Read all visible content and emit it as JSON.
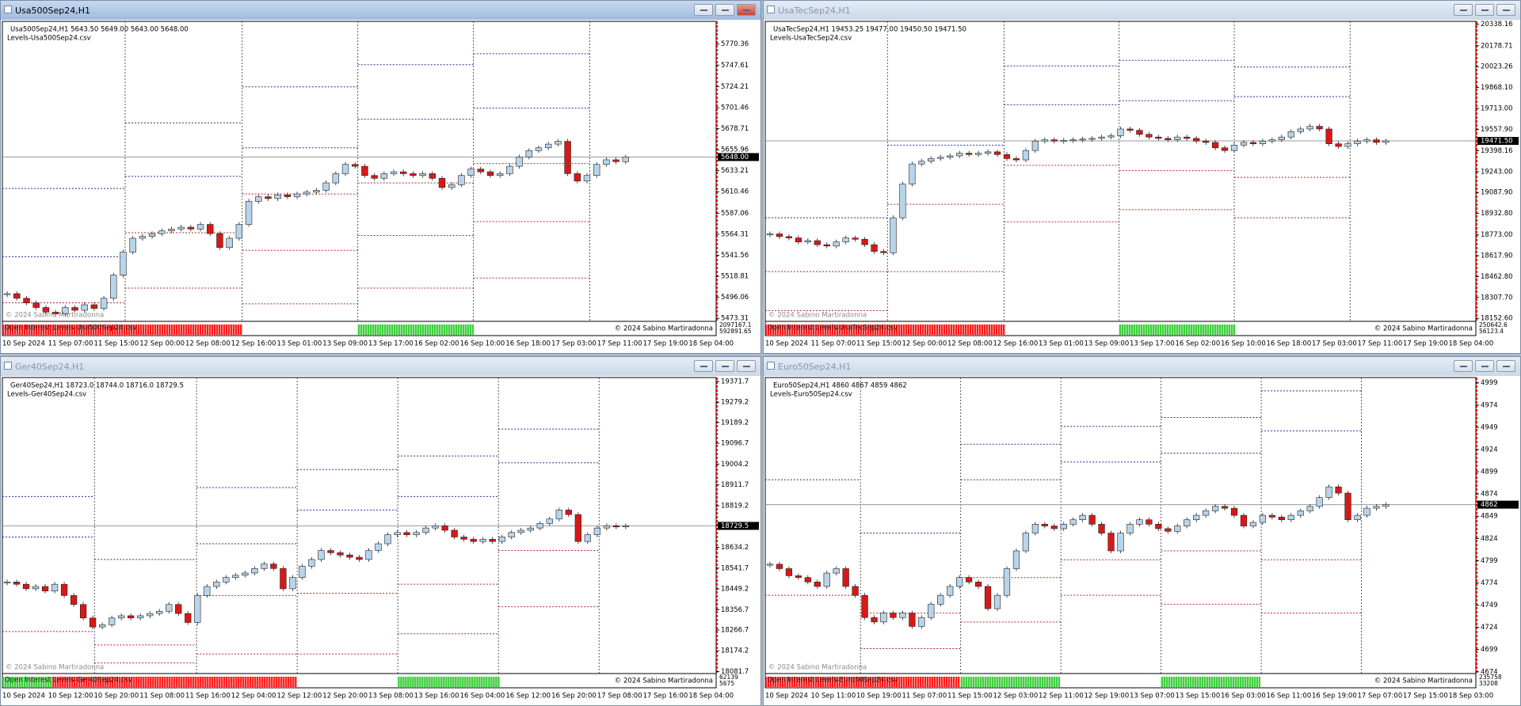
{
  "windows": [
    {
      "title": "Usa500Sep24,H1",
      "active": true,
      "header": "Usa500Sep24,H1  5643.50 5649.00 5643.00 5648.00",
      "file": "Levels-Usa500Sep24.csv",
      "copyright": "© 2024 Sabino Martiradonna",
      "indicator_title": "Open Interest Levels-Usa500Sep24.csv",
      "indicator_values": [
        2097167.1,
        592891.65
      ],
      "ylim": [
        5470,
        5795
      ],
      "price_ticks": [
        5770.36,
        5747.61,
        5724.21,
        5701.46,
        5678.71,
        5655.96,
        5633.21,
        5610.46,
        5587.06,
        5564.31,
        5541.56,
        5518.81,
        5496.06,
        5473.31
      ],
      "current_price": {
        "value": 5648,
        "label": "5648.00"
      },
      "time_labels": [
        "10 Sep 2024",
        "11 Sep 07:00",
        "11 Sep 15:00",
        "12 Sep 00:00",
        "12 Sep 08:00",
        "12 Sep 16:00",
        "13 Sep 01:00",
        "13 Sep 09:00",
        "13 Sep 17:00",
        "16 Sep 02:00",
        "16 Sep 10:00",
        "16 Sep 18:00",
        "17 Sep 03:00",
        "17 Sep 11:00",
        "17 Sep 19:00",
        "18 Sep 04:00"
      ],
      "closes": [
        5500,
        5495,
        5490,
        5485,
        5480,
        5478,
        5485,
        5482,
        5488,
        5484,
        5495,
        5520,
        5545,
        5560,
        5562,
        5565,
        5568,
        5570,
        5572,
        5570,
        5575,
        5565,
        5550,
        5560,
        5575,
        5600,
        5605,
        5603,
        5607,
        5605,
        5608,
        5610,
        5612,
        5620,
        5630,
        5640,
        5638,
        5628,
        5625,
        5630,
        5632,
        5630,
        5628,
        5630,
        5625,
        5615,
        5618,
        5628,
        5635,
        5632,
        5628,
        5630,
        5638,
        5648,
        5655,
        5658,
        5662,
        5665,
        5630,
        5622,
        5628,
        5640,
        5645,
        5643,
        5648
      ],
      "levels": [
        [
          [
            5614,
            5540
          ],
          [
            5490
          ]
        ],
        [
          [
            5685,
            5627
          ],
          [
            5566,
            5506
          ]
        ],
        [
          [
            5724,
            5658
          ],
          [
            5608,
            5547,
            5489
          ]
        ],
        [
          [
            5748,
            5689
          ],
          [
            5620,
            5563,
            5506
          ]
        ],
        [
          [
            5760,
            5701
          ],
          [
            5641,
            5578,
            5517
          ]
        ]
      ],
      "level_colors": [
        "#2b2b9a",
        "#b02828"
      ],
      "candle_colors": [
        "#b8d4ea",
        "#d81818"
      ]
    },
    {
      "title": "UsaTecSep24,H1",
      "active": false,
      "header": "UsaTecSep24,H1  19453.25 19477.00 19450.50 19471.50",
      "file": "Levels-UsaTecSep24.csv",
      "copyright": "© 2024 Sabino Martiradonna",
      "indicator_title": "Open Interest Levels-UsaTecSep24.csv",
      "indicator_values": [
        250642.6,
        56123.4
      ],
      "ylim": [
        18130,
        20360
      ],
      "price_ticks": [
        20338.16,
        20178.71,
        20023.26,
        {
          "value": 19868.1,
          "label": "19868.10"
        },
        {
          "value": 19713,
          "label": "19713.00"
        },
        {
          "value": 19557.9,
          "label": "19557.90"
        },
        19398.16,
        {
          "value": 19243,
          "label": "19243.00"
        },
        {
          "value": 19087.9,
          "label": "19087.90"
        },
        {
          "value": 18932.8,
          "label": "18932.80"
        },
        {
          "value": 18773,
          "label": "18773.00"
        },
        {
          "value": 18617.9,
          "label": "18617.90"
        },
        {
          "value": 18462.8,
          "label": "18462.80"
        },
        {
          "value": 18307.7,
          "label": "18307.70"
        },
        {
          "value": 18152.6,
          "label": "18152.60"
        }
      ],
      "current_price": {
        "value": 19471.5,
        "label": "19471.50"
      },
      "time_labels": [
        "10 Sep 2024",
        "11 Sep 07:00",
        "11 Sep 15:00",
        "12 Sep 00:00",
        "12 Sep 08:00",
        "12 Sep 16:00",
        "13 Sep 01:00",
        "13 Sep 09:00",
        "13 Sep 17:00",
        "16 Sep 02:00",
        "16 Sep 10:00",
        "16 Sep 18:00",
        "17 Sep 03:00",
        "17 Sep 11:00",
        "17 Sep 19:00",
        "18 Sep 04:00"
      ],
      "closes": [
        18780,
        18760,
        18750,
        18720,
        18730,
        18700,
        18690,
        18720,
        18750,
        18740,
        18700,
        18650,
        18640,
        18900,
        19150,
        19300,
        19320,
        19340,
        19350,
        19360,
        19380,
        19370,
        19380,
        19390,
        19370,
        19340,
        19330,
        19400,
        19470,
        19480,
        19470,
        19475,
        19480,
        19485,
        19490,
        19500,
        19510,
        19560,
        19550,
        19520,
        19500,
        19490,
        19480,
        19500,
        19490,
        19470,
        19460,
        19420,
        19400,
        19440,
        19460,
        19450,
        19470,
        19480,
        19500,
        19540,
        19560,
        19580,
        19560,
        19450,
        19430,
        19450,
        19470,
        19480,
        19460,
        19471.5
      ],
      "levels": [
        [
          [
            18900
          ],
          [
            18500,
            18210
          ]
        ],
        [
          [
            19440
          ],
          [
            19000,
            18500
          ]
        ],
        [
          [
            20028,
            19740
          ],
          [
            19290,
            18870
          ]
        ],
        [
          [
            20070,
            19770
          ],
          [
            19250,
            18960
          ]
        ],
        [
          [
            20020,
            19800
          ],
          [
            19200,
            18900
          ]
        ]
      ],
      "level_colors": [
        "#2b2b9a",
        "#b02828"
      ],
      "candle_colors": [
        "#b8d4ea",
        "#d81818"
      ]
    },
    {
      "title": "Ger40Sep24,H1",
      "active": false,
      "header": "Ger40Sep24,H1  18723.0 18744.0 18716.0 18729.5",
      "file": "Levels-Ger40Sep24.csv",
      "copyright": "© 2024 Sabino Martiradonna",
      "indicator_title": "Open Interest Levels-Ger40Sep24.csv",
      "indicator_values": [
        62139,
        5675
      ],
      "ylim": [
        18073,
        19389
      ],
      "price_ticks": [
        19371.7,
        19279.2,
        19189.2,
        19096.7,
        19004.2,
        18911.7,
        18819.2,
        18634.2,
        18541.7,
        18449.2,
        18356.7,
        18266.7,
        18174.2,
        18081.7
      ],
      "current_price": 18729.5,
      "time_labels": [
        "10 Sep 2024",
        "10 Sep 12:00",
        "10 Sep 20:00",
        "11 Sep 08:00",
        "11 Sep 16:00",
        "12 Sep 04:00",
        "12 Sep 12:00",
        "12 Sep 20:00",
        "13 Sep 08:00",
        "13 Sep 16:00",
        "16 Sep 04:00",
        "16 Sep 12:00",
        "16 Sep 20:00",
        "17 Sep 08:00",
        "17 Sep 16:00",
        "18 Sep 04:00"
      ],
      "closes": [
        18480,
        18470,
        18450,
        18460,
        18440,
        18470,
        18420,
        18380,
        18320,
        18280,
        18290,
        18320,
        18330,
        18320,
        18330,
        18340,
        18350,
        18380,
        18340,
        18300,
        18420,
        18460,
        18480,
        18500,
        18510,
        18520,
        18540,
        18560,
        18540,
        18450,
        18500,
        18550,
        18580,
        18620,
        18610,
        18600,
        18590,
        18580,
        18620,
        18650,
        18690,
        18700,
        18690,
        18700,
        18720,
        18730,
        18710,
        18680,
        18670,
        18660,
        18670,
        18660,
        18680,
        18700,
        18710,
        18720,
        18740,
        18760,
        18800,
        18780,
        18660,
        18690,
        18720,
        18730,
        18725,
        18729.5
      ],
      "levels": [
        [
          [
            18860,
            18680
          ],
          [
            18260
          ]
        ],
        [
          [
            18580
          ],
          [
            18200,
            18120
          ]
        ],
        [
          [
            18900,
            18650
          ],
          [
            18420,
            18160
          ]
        ],
        [
          [
            18980,
            18800
          ],
          [
            18430,
            18160
          ]
        ],
        [
          [
            19040,
            18860
          ],
          [
            18470,
            18250
          ]
        ],
        [
          [
            19160,
            19010
          ],
          [
            18620,
            18370
          ]
        ]
      ],
      "level_colors": [
        "#2b2b9a",
        "#b02828"
      ],
      "candle_colors": [
        "#b8d4ea",
        "#d81818"
      ]
    },
    {
      "title": "Euro50Sep24,H1",
      "active": false,
      "header": "Euro50Sep24,H1  4860 4867 4859 4862",
      "file": "Levels-Euro50Sep24.csv",
      "copyright": "© 2024 Sabino Martiradonna",
      "indicator_title": "Open Interest Levels-Euro50Sep24.csv",
      "indicator_values": [
        235758,
        33208
      ],
      "ylim": [
        4672,
        5005
      ],
      "price_ticks": [
        4999,
        4974,
        4949,
        4924,
        4899,
        4874,
        4849,
        4824,
        4799,
        4774,
        4749,
        4724,
        4699,
        4674
      ],
      "current_price": 4862,
      "time_labels": [
        "10 Sep 2024",
        "10 Sep 11:00",
        "10 Sep 19:00",
        "11 Sep 07:00",
        "11 Sep 15:00",
        "12 Sep 03:00",
        "12 Sep 11:00",
        "12 Sep 19:00",
        "13 Sep 07:00",
        "13 Sep 15:00",
        "16 Sep 03:00",
        "16 Sep 11:00",
        "16 Sep 19:00",
        "17 Sep 07:00",
        "17 Sep 15:00",
        "18 Sep 03:00"
      ],
      "closes": [
        4795,
        4790,
        4782,
        4780,
        4775,
        4770,
        4785,
        4790,
        4770,
        4760,
        4735,
        4730,
        4740,
        4735,
        4740,
        4725,
        4735,
        4750,
        4760,
        4770,
        4780,
        4775,
        4770,
        4745,
        4760,
        4790,
        4810,
        4830,
        4840,
        4838,
        4835,
        4840,
        4845,
        4850,
        4840,
        4830,
        4810,
        4830,
        4840,
        4845,
        4840,
        4835,
        4832,
        4838,
        4845,
        4850,
        4855,
        4860,
        4858,
        4850,
        4838,
        4842,
        4850,
        4848,
        4845,
        4850,
        4855,
        4860,
        4870,
        4882,
        4875,
        4845,
        4850,
        4858,
        4860,
        4862
      ],
      "levels": [
        [
          [
            4890
          ],
          [
            4760
          ]
        ],
        [
          [
            4830
          ],
          [
            4740,
            4700
          ]
        ],
        [
          [
            4930,
            4890
          ],
          [
            4780,
            4730
          ]
        ],
        [
          [
            4950,
            4910
          ],
          [
            4800,
            4760
          ]
        ],
        [
          [
            4960,
            4920
          ],
          [
            4810,
            4750
          ]
        ],
        [
          [
            4990,
            4945
          ],
          [
            4800,
            4740
          ]
        ]
      ],
      "level_colors": [
        "#2b2b9a",
        "#b02828"
      ],
      "candle_colors": [
        "#b8d4ea",
        "#d81818"
      ]
    }
  ]
}
